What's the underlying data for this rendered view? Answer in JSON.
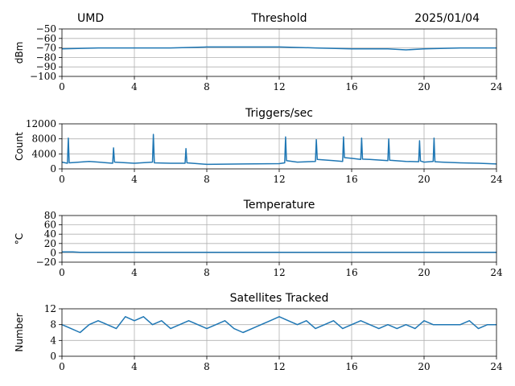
{
  "header": {
    "station": "UMD",
    "date": "2025/01/04"
  },
  "chart_data": [
    {
      "type": "line",
      "title": "Threshold",
      "ylabel": "dBm",
      "xlim": [
        0,
        24
      ],
      "ylim": [
        -100,
        -50
      ],
      "xticks": [
        0,
        4,
        8,
        12,
        16,
        20,
        24
      ],
      "yticks": [
        -100,
        -90,
        -80,
        -70,
        -60,
        -50
      ],
      "ytick_labels": [
        "−100",
        "−90",
        "−80",
        "−70",
        "−60",
        "−50"
      ],
      "grid": true,
      "series": [
        {
          "x": [
            0,
            2,
            4,
            6,
            8,
            10,
            12,
            14,
            16,
            18,
            19,
            20,
            22,
            24
          ],
          "values": [
            -71,
            -70,
            -70,
            -70,
            -69,
            -69,
            -69,
            -70,
            -71,
            -71,
            -72,
            -71,
            -70,
            -70
          ]
        }
      ]
    },
    {
      "type": "line",
      "title": "Triggers/sec",
      "ylabel": "Count",
      "xlim": [
        0,
        24
      ],
      "ylim": [
        0,
        12000
      ],
      "xticks": [
        0,
        4,
        8,
        12,
        16,
        20,
        24
      ],
      "yticks": [
        0,
        4000,
        8000,
        12000
      ],
      "ytick_labels": [
        "0",
        "4000",
        "8000",
        "12000"
      ],
      "grid": true,
      "series": [
        {
          "x": [
            0,
            0.3,
            0.35,
            0.4,
            1.5,
            2.8,
            2.85,
            2.9,
            4,
            5,
            5.05,
            5.1,
            6,
            6.8,
            6.85,
            6.9,
            8,
            10,
            12,
            12.3,
            12.35,
            12.4,
            13,
            14,
            14.05,
            14.1,
            15,
            15.5,
            15.55,
            15.6,
            16,
            16.5,
            16.55,
            16.6,
            17,
            18,
            18.05,
            18.1,
            19,
            19.7,
            19.75,
            19.8,
            20,
            20.5,
            20.55,
            20.6,
            21,
            22,
            23,
            24
          ],
          "values": [
            1800,
            1500,
            8200,
            1600,
            2000,
            1500,
            5600,
            1800,
            1500,
            1800,
            9200,
            1600,
            1500,
            1500,
            5400,
            1600,
            1200,
            1300,
            1400,
            1600,
            8500,
            2200,
            1800,
            2000,
            7800,
            2500,
            2200,
            2000,
            8500,
            3000,
            2800,
            2500,
            8200,
            2600,
            2500,
            2200,
            8000,
            2300,
            2000,
            1900,
            7500,
            2100,
            1800,
            2000,
            8200,
            1900,
            1800,
            1600,
            1500,
            1300
          ]
        }
      ]
    },
    {
      "type": "line",
      "title": "Temperature",
      "ylabel": "°C",
      "xlim": [
        0,
        24
      ],
      "ylim": [
        -20,
        80
      ],
      "xticks": [
        0,
        4,
        8,
        12,
        16,
        20,
        24
      ],
      "yticks": [
        -20,
        0,
        20,
        40,
        60,
        80
      ],
      "ytick_labels": [
        "−20",
        "0",
        "20",
        "40",
        "60",
        "80"
      ],
      "grid": true,
      "series": [
        {
          "x": [
            0,
            0.6,
            1,
            4,
            8,
            12,
            16,
            20,
            24
          ],
          "values": [
            2,
            2,
            1,
            1,
            1,
            1,
            1,
            1,
            1
          ]
        }
      ]
    },
    {
      "type": "line",
      "title": "Satellites Tracked",
      "ylabel": "Number",
      "xlim": [
        0,
        24
      ],
      "ylim": [
        0,
        12
      ],
      "xticks": [
        0,
        4,
        8,
        12,
        16,
        20,
        24
      ],
      "yticks": [
        0,
        4,
        8,
        12
      ],
      "ytick_labels": [
        "0",
        "4",
        "8",
        "12"
      ],
      "grid": true,
      "series": [
        {
          "x": [
            0,
            0.5,
            1,
            1.5,
            2,
            2.5,
            3,
            3.5,
            4,
            4.5,
            5,
            5.5,
            6,
            6.5,
            7,
            7.5,
            8,
            8.5,
            9,
            9.5,
            10,
            10.5,
            11,
            11.5,
            12,
            12.5,
            13,
            13.5,
            14,
            14.5,
            15,
            15.5,
            16,
            16.5,
            17,
            17.5,
            18,
            18.5,
            19,
            19.5,
            20,
            20.5,
            21,
            21.5,
            22,
            22.5,
            23,
            23.5,
            24
          ],
          "values": [
            8,
            7,
            6,
            8,
            9,
            8,
            7,
            10,
            9,
            10,
            8,
            9,
            7,
            8,
            9,
            8,
            7,
            8,
            9,
            7,
            6,
            7,
            8,
            9,
            10,
            9,
            8,
            9,
            7,
            8,
            9,
            7,
            8,
            9,
            8,
            7,
            8,
            7,
            8,
            7,
            9,
            8,
            8,
            8,
            8,
            9,
            7,
            8,
            8
          ]
        }
      ]
    }
  ]
}
